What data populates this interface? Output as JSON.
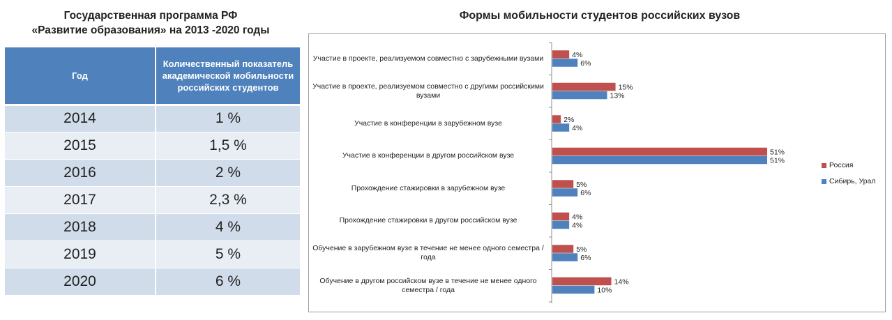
{
  "left_panel": {
    "title_line1": "Государственная программа РФ",
    "title_line2": "«Развитие образования» на 2013 -2020 годы",
    "table": {
      "header_year": "Год",
      "header_value": "Количественный показатель академической мобильности российских студентов",
      "rows": [
        {
          "year": "2014",
          "value": "1 %"
        },
        {
          "year": "2015",
          "value": "1,5 %"
        },
        {
          "year": "2016",
          "value": "2 %"
        },
        {
          "year": "2017",
          "value": "2,3 %"
        },
        {
          "year": "2018",
          "value": "4 %"
        },
        {
          "year": "2019",
          "value": "5 %"
        },
        {
          "year": "2020",
          "value": "6 %"
        }
      ]
    }
  },
  "chart_data": {
    "type": "bar",
    "orientation": "horizontal",
    "title": "Формы мобильности студентов российских вузов",
    "categories": [
      "Участие в проекте, реализуемом совместно с зарубежными вузами",
      "Участие в проекте, реализуемом совместно с другими российскими вузами",
      "Участие в конференции в зарубежном  вузе",
      "Участие в конференции в другом российском вузе",
      "Прохождение стажировки в зарубежном  вузе",
      "Прохождение стажировки в другом российском вузе",
      "Обучение в зарубежном вузе  в течение не менее одного семестра / года",
      "Обучение в другом российском вузе  в течение не менее одного семестра / года"
    ],
    "series": [
      {
        "name": "Россия",
        "color": "#c0504d",
        "values": [
          4,
          15,
          2,
          51,
          5,
          4,
          5,
          14
        ]
      },
      {
        "name": "Сибирь, Урал",
        "color": "#4f81bd",
        "values": [
          6,
          13,
          4,
          51,
          6,
          4,
          6,
          10
        ]
      }
    ],
    "value_suffix": "%",
    "xlim": [
      0,
      51
    ],
    "grid": false,
    "legend_position": "right"
  }
}
